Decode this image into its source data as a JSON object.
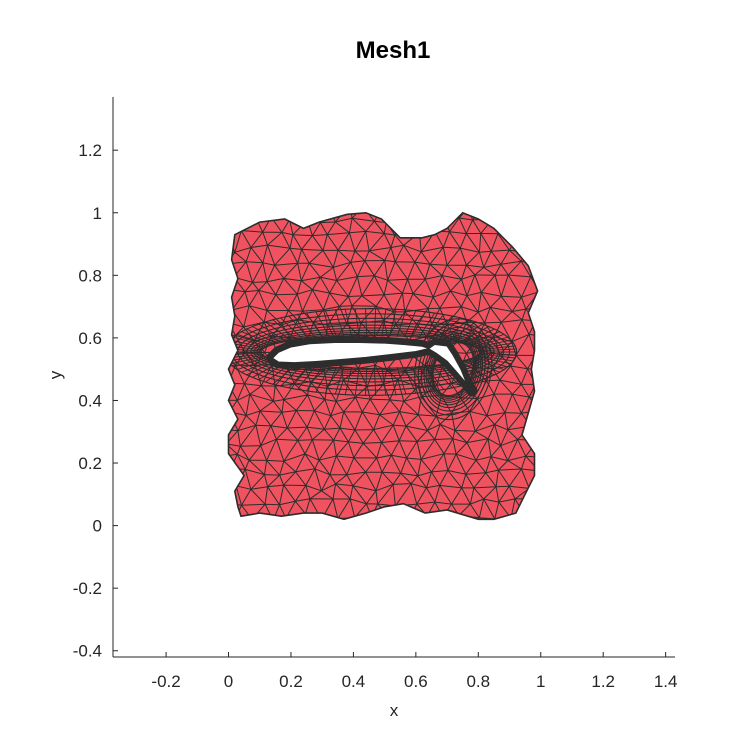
{
  "chart_data": {
    "type": "mesh",
    "title": "Mesh1",
    "xlabel": "x",
    "ylabel": "y",
    "xlim": [
      -0.37,
      1.43
    ],
    "ylim": [
      -0.42,
      1.37
    ],
    "xticks": [
      -0.2,
      0,
      0.2,
      0.4,
      0.6,
      0.8,
      1,
      1.2,
      1.4
    ],
    "xtick_labels": [
      "-0.2",
      "0",
      "0.2",
      "0.4",
      "0.6",
      "0.8",
      "1",
      "1.2",
      "1.4"
    ],
    "yticks": [
      -0.4,
      -0.2,
      0,
      0.2,
      0.4,
      0.6,
      0.8,
      1,
      1.2
    ],
    "ytick_labels": [
      "-0.4",
      "-0.2",
      "0",
      "0.2",
      "0.4",
      "0.6",
      "0.8",
      "1",
      "1.2"
    ],
    "grid": false,
    "colors": {
      "face": "#F0525F",
      "edge": "#2D2D2D",
      "hole": "#ffffff"
    },
    "outer_boundary": [
      [
        0.02,
        0.93
      ],
      [
        0.1,
        0.97
      ],
      [
        0.18,
        0.98
      ],
      [
        0.24,
        0.95
      ],
      [
        0.29,
        0.97
      ],
      [
        0.38,
        0.995
      ],
      [
        0.44,
        1.0
      ],
      [
        0.49,
        0.98
      ],
      [
        0.55,
        0.92
      ],
      [
        0.62,
        0.92
      ],
      [
        0.66,
        0.93
      ],
      [
        0.7,
        0.95
      ],
      [
        0.75,
        1.0
      ],
      [
        0.8,
        0.98
      ],
      [
        0.85,
        0.95
      ],
      [
        0.91,
        0.89
      ],
      [
        0.96,
        0.83
      ],
      [
        0.99,
        0.75
      ],
      [
        0.96,
        0.68
      ],
      [
        0.98,
        0.62
      ],
      [
        0.98,
        0.56
      ],
      [
        0.97,
        0.5
      ],
      [
        0.98,
        0.43
      ],
      [
        0.96,
        0.36
      ],
      [
        0.94,
        0.29
      ],
      [
        0.98,
        0.23
      ],
      [
        0.98,
        0.16
      ],
      [
        0.95,
        0.1
      ],
      [
        0.92,
        0.04
      ],
      [
        0.85,
        0.02
      ],
      [
        0.8,
        0.02
      ],
      [
        0.7,
        0.05
      ],
      [
        0.63,
        0.04
      ],
      [
        0.56,
        0.07
      ],
      [
        0.5,
        0.06
      ],
      [
        0.44,
        0.04
      ],
      [
        0.37,
        0.02
      ],
      [
        0.3,
        0.04
      ],
      [
        0.24,
        0.04
      ],
      [
        0.17,
        0.03
      ],
      [
        0.1,
        0.04
      ],
      [
        0.04,
        0.03
      ],
      [
        0.03,
        0.06
      ],
      [
        0.02,
        0.11
      ],
      [
        0.05,
        0.16
      ],
      [
        0.0,
        0.23
      ],
      [
        0.0,
        0.29
      ],
      [
        0.03,
        0.34
      ],
      [
        0.0,
        0.4
      ],
      [
        0.02,
        0.45
      ],
      [
        0.0,
        0.5
      ],
      [
        0.03,
        0.56
      ],
      [
        0.01,
        0.61
      ],
      [
        0.02,
        0.67
      ],
      [
        0.01,
        0.73
      ],
      [
        0.03,
        0.79
      ],
      [
        0.01,
        0.85
      ],
      [
        0.02,
        0.93
      ]
    ],
    "main_element": [
      [
        0.14,
        0.535
      ],
      [
        0.16,
        0.555
      ],
      [
        0.2,
        0.572
      ],
      [
        0.26,
        0.582
      ],
      [
        0.34,
        0.586
      ],
      [
        0.42,
        0.586
      ],
      [
        0.5,
        0.584
      ],
      [
        0.56,
        0.58
      ],
      [
        0.62,
        0.574
      ],
      [
        0.645,
        0.566
      ],
      [
        0.6,
        0.556
      ],
      [
        0.52,
        0.546
      ],
      [
        0.44,
        0.537
      ],
      [
        0.36,
        0.53
      ],
      [
        0.28,
        0.524
      ],
      [
        0.21,
        0.52
      ],
      [
        0.16,
        0.522
      ]
    ],
    "flap_element": [
      [
        0.64,
        0.565
      ],
      [
        0.66,
        0.58
      ],
      [
        0.7,
        0.575
      ],
      [
        0.72,
        0.545
      ],
      [
        0.745,
        0.5
      ],
      [
        0.765,
        0.45
      ],
      [
        0.78,
        0.43
      ],
      [
        0.765,
        0.45
      ],
      [
        0.735,
        0.485
      ],
      [
        0.7,
        0.525
      ],
      [
        0.665,
        0.55
      ]
    ]
  }
}
